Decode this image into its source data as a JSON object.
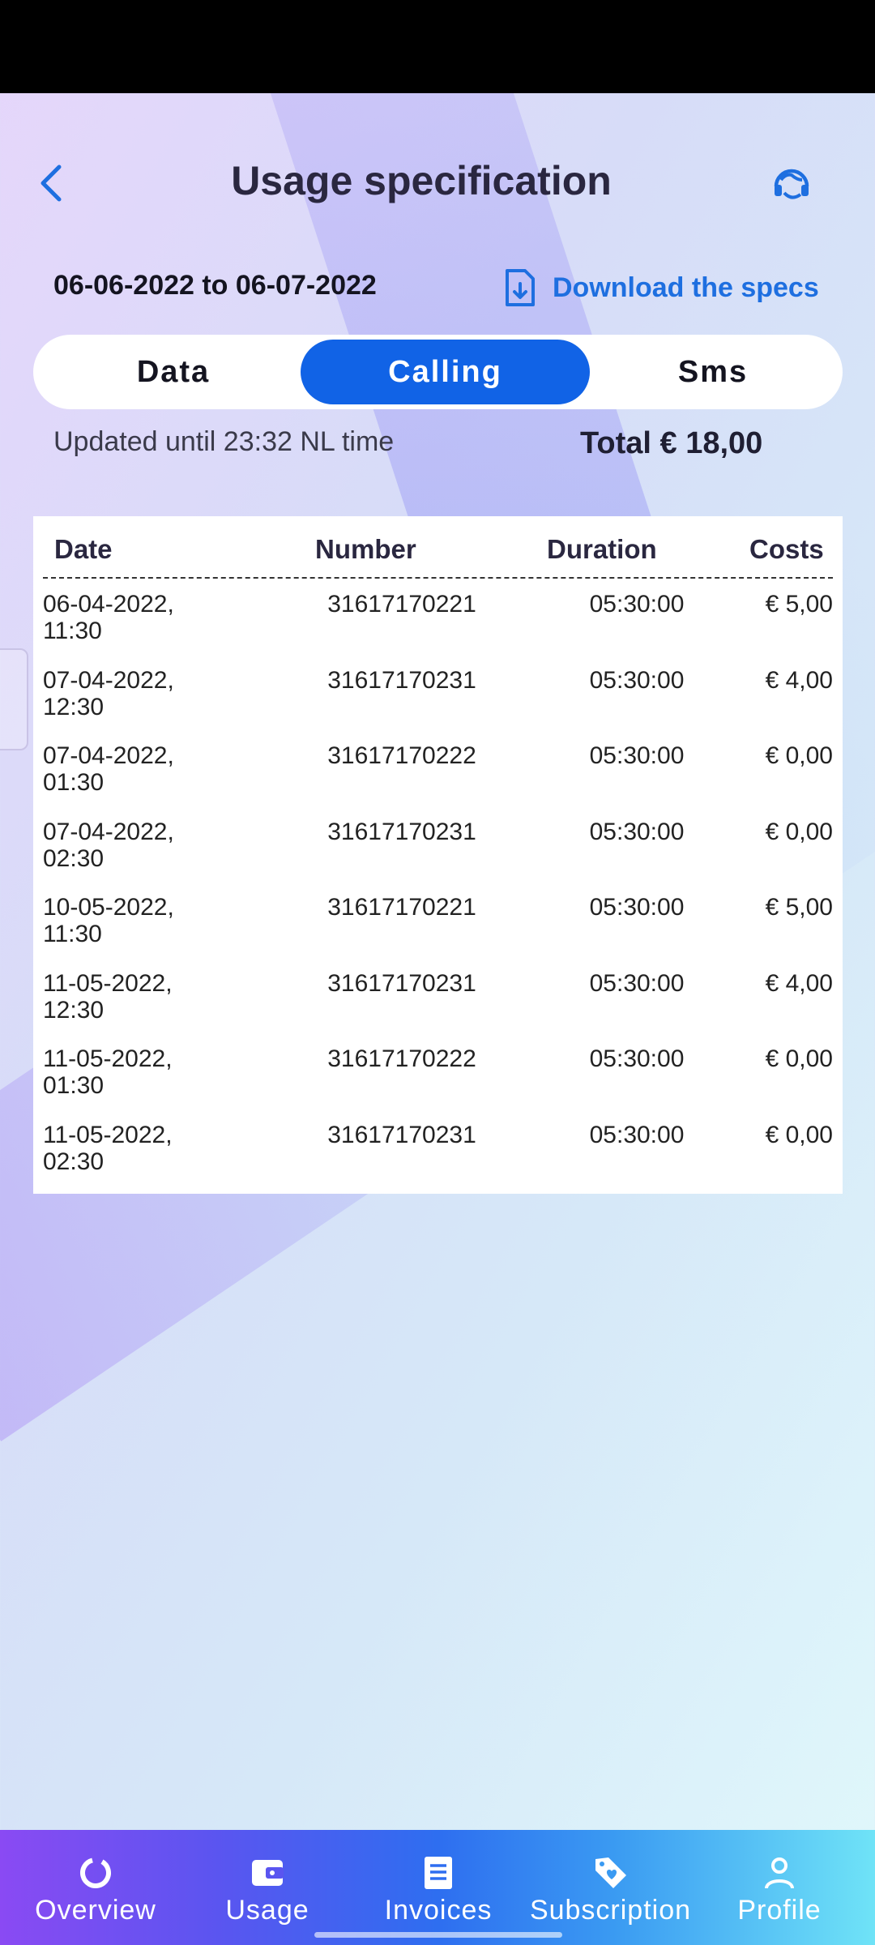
{
  "header": {
    "title": "Usage specification",
    "back_icon": "chevron-left-icon",
    "support_icon": "headset-support-icon"
  },
  "period": {
    "text": "06-06-2022 to 06-07-2022",
    "download_label": "Download the specs",
    "download_icon": "file-download-icon"
  },
  "tabs": [
    {
      "label": "Data",
      "active": false
    },
    {
      "label": "Calling",
      "active": true
    },
    {
      "label": "Sms",
      "active": false
    }
  ],
  "summary": {
    "updated": "Updated until 23:32 NL time",
    "total": "Total € 18,00"
  },
  "table": {
    "headers": {
      "date": "Date",
      "number": "Number",
      "duration": "Duration",
      "costs": "Costs"
    },
    "rows": [
      {
        "date_line1": "06-04-2022,",
        "date_line2": "11:30",
        "number": "31617170221",
        "duration": "05:30:00",
        "cost": "€ 5,00"
      },
      {
        "date_line1": "07-04-2022,",
        "date_line2": "12:30",
        "number": "31617170231",
        "duration": "05:30:00",
        "cost": "€ 4,00"
      },
      {
        "date_line1": "07-04-2022,",
        "date_line2": "01:30",
        "number": "31617170222",
        "duration": "05:30:00",
        "cost": "€ 0,00"
      },
      {
        "date_line1": "07-04-2022,",
        "date_line2": "02:30",
        "number": "31617170231",
        "duration": "05:30:00",
        "cost": "€ 0,00"
      },
      {
        "date_line1": "10-05-2022,",
        "date_line2": "11:30",
        "number": "31617170221",
        "duration": "05:30:00",
        "cost": "€ 5,00"
      },
      {
        "date_line1": "11-05-2022,",
        "date_line2": "12:30",
        "number": "31617170231",
        "duration": "05:30:00",
        "cost": "€ 4,00"
      },
      {
        "date_line1": "11-05-2022,",
        "date_line2": "01:30",
        "number": "31617170222",
        "duration": "05:30:00",
        "cost": "€ 0,00"
      },
      {
        "date_line1": "11-05-2022,",
        "date_line2": "02:30",
        "number": "31617170231",
        "duration": "05:30:00",
        "cost": "€ 0,00"
      }
    ]
  },
  "bottom_nav": [
    {
      "label": "Overview",
      "icon": "donut-chart-icon"
    },
    {
      "label": "Usage",
      "icon": "wallet-icon"
    },
    {
      "label": "Invoices",
      "icon": "document-list-icon"
    },
    {
      "label": "Subscription",
      "icon": "price-tag-heart-icon"
    },
    {
      "label": "Profile",
      "icon": "user-icon"
    }
  ],
  "colors": {
    "accent": "#1163e6",
    "link": "#1e6fe0",
    "title": "#2a2740"
  }
}
